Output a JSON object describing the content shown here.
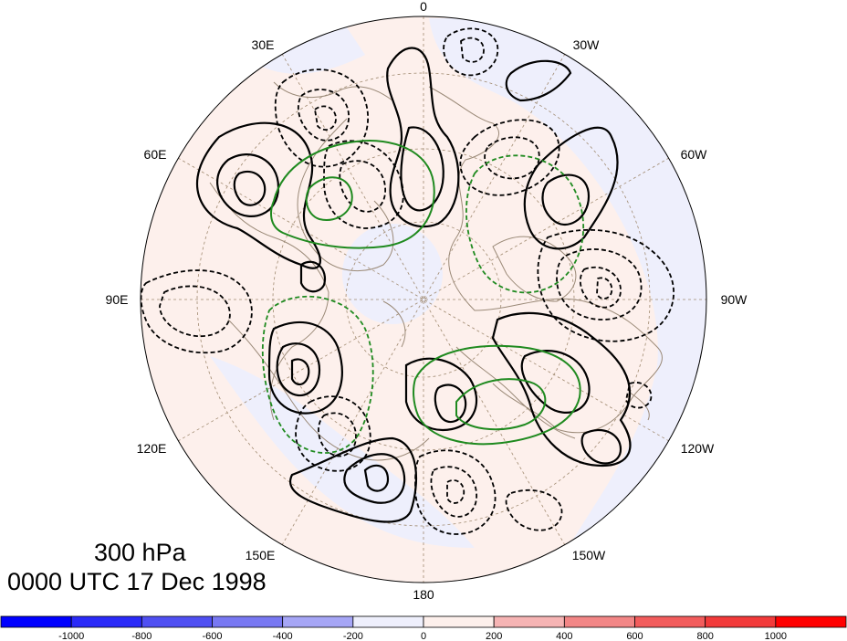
{
  "map": {
    "projection": "north-polar-stereographic",
    "longitude_labels": [
      "0",
      "30W",
      "60W",
      "90W",
      "120W",
      "150W",
      "180",
      "150E",
      "120E",
      "90E",
      "60E",
      "30E"
    ],
    "colors": {
      "background_positive": "#fdf0ec",
      "background_negative": "#eeeffc",
      "coastline": "#9b8a78",
      "gridline": "#a08a70",
      "contour_positive": "#000000",
      "contour_negative": "#000000",
      "contour_green": "#1f8a1f",
      "frame": "#000000"
    },
    "contour_styles": [
      "solid-black",
      "dashed-black",
      "solid-green",
      "dashed-green"
    ]
  },
  "title": {
    "level": "300 hPa",
    "time": "0000 UTC 17 Dec 1998"
  },
  "colorbar": {
    "ticks": [
      "-1000",
      "-800",
      "-600",
      "-400",
      "-200",
      "0",
      "200",
      "400",
      "600",
      "800",
      "1000"
    ],
    "colors": [
      "#0000ff",
      "#2a2af8",
      "#4f4ff2",
      "#7878f2",
      "#a6a6f6",
      "#eeeffc",
      "#fdf0ec",
      "#f6b4b4",
      "#f28686",
      "#f25c5c",
      "#f23a3a",
      "#ff0000"
    ]
  }
}
